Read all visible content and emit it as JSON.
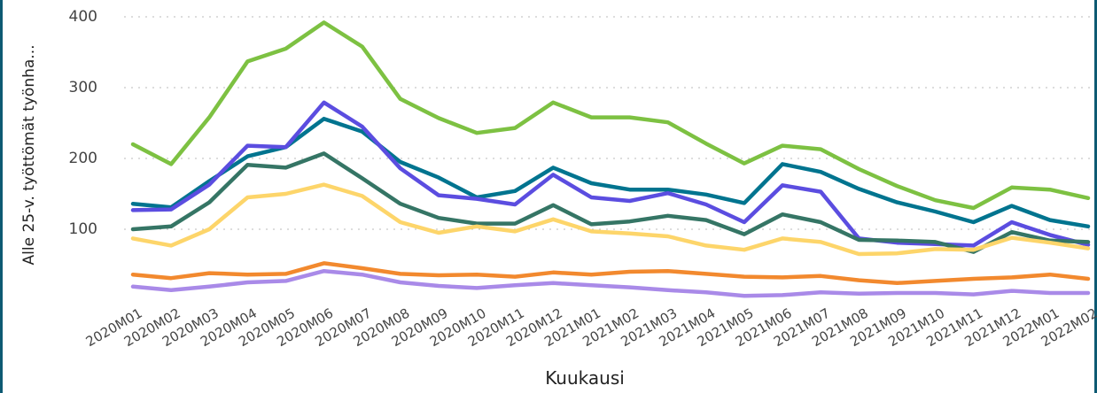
{
  "chart_data": {
    "type": "line",
    "x_label": "Kuukausi",
    "y_label": "Alle 25-v. työttömät työnha...",
    "categories": [
      "2020M01",
      "2020M02",
      "2020M03",
      "2020M04",
      "2020M05",
      "2020M06",
      "2020M07",
      "2020M08",
      "2020M09",
      "2020M10",
      "2020M11",
      "2020M12",
      "2021M01",
      "2021M02",
      "2021M03",
      "2021M04",
      "2021M05",
      "2021M06",
      "2021M07",
      "2021M08",
      "2021M09",
      "2021M10",
      "2021M11",
      "2021M12",
      "2022M01",
      "2022M02"
    ],
    "series": [
      {
        "color": "#7dc142",
        "values": [
          220,
          192,
          258,
          337,
          355,
          392,
          358,
          284,
          257,
          236,
          243,
          279,
          258,
          258,
          251,
          221,
          193,
          218,
          213,
          185,
          161,
          141,
          130,
          159,
          156,
          144
        ]
      },
      {
        "color": "#00748f",
        "values": [
          136,
          131,
          168,
          203,
          216,
          256,
          238,
          195,
          173,
          145,
          154,
          187,
          165,
          156,
          156,
          149,
          137,
          192,
          181,
          157,
          138,
          125,
          110,
          133,
          113,
          104
        ]
      },
      {
        "color": "#5b4de0",
        "values": [
          127,
          128,
          163,
          218,
          216,
          279,
          245,
          186,
          148,
          143,
          135,
          177,
          145,
          140,
          151,
          135,
          110,
          162,
          153,
          87,
          81,
          79,
          77,
          110,
          92,
          78
        ]
      },
      {
        "color": "#357565",
        "values": [
          100,
          104,
          138,
          191,
          187,
          207,
          172,
          136,
          116,
          108,
          108,
          134,
          107,
          111,
          119,
          113,
          93,
          121,
          110,
          85,
          84,
          82,
          68,
          96,
          84,
          82
        ]
      },
      {
        "color": "#fdd56a",
        "values": [
          87,
          77,
          100,
          145,
          150,
          163,
          147,
          110,
          95,
          104,
          97,
          114,
          97,
          94,
          90,
          77,
          71,
          87,
          82,
          65,
          66,
          72,
          71,
          88,
          81,
          73
        ]
      },
      {
        "color": "#f2892e",
        "values": [
          36,
          31,
          38,
          36,
          37,
          52,
          45,
          37,
          35,
          36,
          33,
          39,
          36,
          40,
          41,
          37,
          33,
          32,
          34,
          28,
          24,
          27,
          30,
          32,
          36,
          30
        ]
      },
      {
        "color": "#a98ae8",
        "values": [
          19,
          14,
          19,
          25,
          27,
          41,
          36,
          25,
          20,
          17,
          21,
          24,
          21,
          18,
          14,
          11,
          6,
          7,
          11,
          9,
          10,
          10,
          8,
          13,
          10,
          10
        ]
      }
    ],
    "ylim": [
      0,
      400
    ],
    "yticks": [
      100,
      200,
      300,
      400
    ],
    "grid": true
  }
}
